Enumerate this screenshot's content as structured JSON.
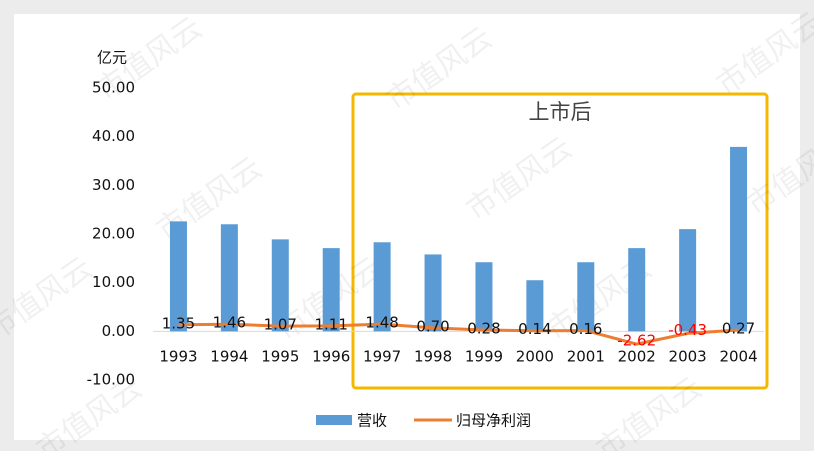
{
  "chart_data": {
    "type": "bar-line",
    "unit_label": "亿元",
    "annotation": "上市后",
    "watermark": "市值风云",
    "categories": [
      "1993",
      "1994",
      "1995",
      "1996",
      "1997",
      "1998",
      "1999",
      "2000",
      "2001",
      "2002",
      "2003",
      "2004"
    ],
    "series": [
      {
        "name": "营收",
        "type": "bar",
        "color": "#5b9bd5",
        "values": [
          22.6,
          22.0,
          18.9,
          17.1,
          18.3,
          15.8,
          14.2,
          10.5,
          14.2,
          17.1,
          21.0,
          37.9
        ]
      },
      {
        "name": "归母净利润",
        "type": "line",
        "color": "#ed7d31",
        "values": [
          1.35,
          1.46,
          1.07,
          1.11,
          1.48,
          0.7,
          0.28,
          0.14,
          0.16,
          -2.62,
          -0.43,
          0.27
        ],
        "value_labels": [
          "1.35",
          "1.46",
          "1.07",
          "1.11",
          "1.48",
          "0.70",
          "0.28",
          "0.14",
          "0.16",
          "-2.62",
          "-0.43",
          "0.27"
        ],
        "negative_label_color": "#ff0000"
      }
    ],
    "ylim": [
      -10,
      50
    ],
    "yticks": [
      {
        "value": -10,
        "label": "-10.00"
      },
      {
        "value": 0,
        "label": "0.00"
      },
      {
        "value": 10,
        "label": "10.00"
      },
      {
        "value": 20,
        "label": "20.00"
      },
      {
        "value": 30,
        "label": "30.00"
      },
      {
        "value": 40,
        "label": "40.00"
      },
      {
        "value": 50,
        "label": "50.00"
      }
    ],
    "legend": "bottom"
  }
}
